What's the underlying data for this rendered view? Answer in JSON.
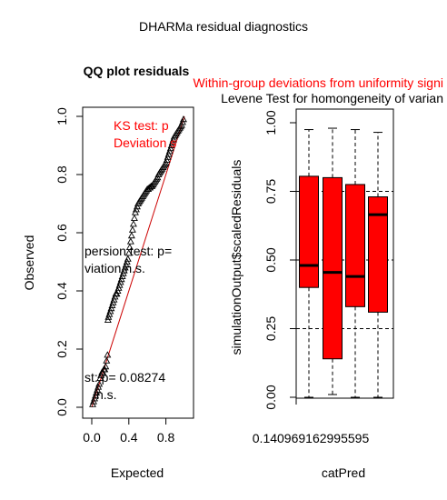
{
  "main_title": "DHARMa residual diagnostics",
  "colors": {
    "red": "#ff0000",
    "black": "#000000",
    "dark_red": "#cc0000"
  },
  "chart_data": [
    {
      "type": "scatter",
      "title": "QQ plot residuals",
      "xlabel": "Expected",
      "ylabel": "Observed",
      "xlim": [
        0,
        1
      ],
      "ylim": [
        0,
        1
      ],
      "x_ticks": [
        "0.0",
        "0.4",
        "0.8"
      ],
      "y_ticks": [
        "0.0",
        "0.2",
        "0.4",
        "0.6",
        "0.8",
        "1.0"
      ],
      "reference_line": "y = x",
      "point_symbol": "open triangle",
      "annotations": [
        {
          "text": "KS test: p",
          "color": "red"
        },
        {
          "text": "Deviation s",
          "color": "red"
        },
        {
          "text": "persion test: p=",
          "color": "black"
        },
        {
          "text": "viation n.s.",
          "color": "black"
        },
        {
          "text": "st: p= 0.08274",
          "color": "black"
        },
        {
          "text": "n.s.",
          "color": "black"
        }
      ],
      "points": [
        [
          0.01,
          0.01
        ],
        [
          0.02,
          0.02
        ],
        [
          0.03,
          0.03
        ],
        [
          0.04,
          0.04
        ],
        [
          0.05,
          0.05
        ],
        [
          0.06,
          0.06
        ],
        [
          0.07,
          0.07
        ],
        [
          0.08,
          0.08
        ],
        [
          0.09,
          0.1
        ],
        [
          0.1,
          0.11
        ],
        [
          0.11,
          0.12
        ],
        [
          0.12,
          0.12
        ],
        [
          0.13,
          0.13
        ],
        [
          0.14,
          0.13
        ],
        [
          0.15,
          0.14
        ],
        [
          0.16,
          0.16
        ],
        [
          0.17,
          0.18
        ],
        [
          0.175,
          0.3
        ],
        [
          0.18,
          0.31
        ],
        [
          0.19,
          0.32
        ],
        [
          0.2,
          0.33
        ],
        [
          0.21,
          0.34
        ],
        [
          0.22,
          0.35
        ],
        [
          0.23,
          0.36
        ],
        [
          0.24,
          0.37
        ],
        [
          0.25,
          0.38
        ],
        [
          0.26,
          0.39
        ],
        [
          0.27,
          0.39
        ],
        [
          0.28,
          0.4
        ],
        [
          0.29,
          0.41
        ],
        [
          0.3,
          0.42
        ],
        [
          0.31,
          0.43
        ],
        [
          0.32,
          0.44
        ],
        [
          0.33,
          0.45
        ],
        [
          0.34,
          0.46
        ],
        [
          0.35,
          0.47
        ],
        [
          0.36,
          0.48
        ],
        [
          0.37,
          0.49
        ],
        [
          0.38,
          0.5
        ],
        [
          0.39,
          0.51
        ],
        [
          0.4,
          0.53
        ],
        [
          0.41,
          0.55
        ],
        [
          0.42,
          0.57
        ],
        [
          0.43,
          0.59
        ],
        [
          0.44,
          0.61
        ],
        [
          0.45,
          0.63
        ],
        [
          0.46,
          0.65
        ],
        [
          0.47,
          0.67
        ],
        [
          0.48,
          0.68
        ],
        [
          0.49,
          0.69
        ],
        [
          0.5,
          0.7
        ],
        [
          0.51,
          0.705
        ],
        [
          0.52,
          0.71
        ],
        [
          0.53,
          0.715
        ],
        [
          0.54,
          0.72
        ],
        [
          0.55,
          0.725
        ],
        [
          0.56,
          0.73
        ],
        [
          0.57,
          0.735
        ],
        [
          0.58,
          0.74
        ],
        [
          0.59,
          0.745
        ],
        [
          0.6,
          0.75
        ],
        [
          0.61,
          0.75
        ],
        [
          0.62,
          0.755
        ],
        [
          0.63,
          0.755
        ],
        [
          0.64,
          0.76
        ],
        [
          0.65,
          0.76
        ],
        [
          0.66,
          0.765
        ],
        [
          0.67,
          0.77
        ],
        [
          0.68,
          0.775
        ],
        [
          0.69,
          0.78
        ],
        [
          0.7,
          0.785
        ],
        [
          0.71,
          0.79
        ],
        [
          0.72,
          0.8
        ],
        [
          0.73,
          0.805
        ],
        [
          0.74,
          0.81
        ],
        [
          0.75,
          0.815
        ],
        [
          0.76,
          0.82
        ],
        [
          0.77,
          0.825
        ],
        [
          0.78,
          0.83
        ],
        [
          0.79,
          0.835
        ],
        [
          0.8,
          0.84
        ],
        [
          0.81,
          0.85
        ],
        [
          0.82,
          0.86
        ],
        [
          0.83,
          0.87
        ],
        [
          0.84,
          0.88
        ],
        [
          0.85,
          0.89
        ],
        [
          0.86,
          0.9
        ],
        [
          0.87,
          0.91
        ],
        [
          0.88,
          0.92
        ],
        [
          0.89,
          0.93
        ],
        [
          0.9,
          0.935
        ],
        [
          0.91,
          0.94
        ],
        [
          0.92,
          0.945
        ],
        [
          0.93,
          0.95
        ],
        [
          0.94,
          0.955
        ],
        [
          0.95,
          0.96
        ],
        [
          0.96,
          0.965
        ],
        [
          0.97,
          0.97
        ],
        [
          0.98,
          0.98
        ],
        [
          0.99,
          0.99
        ]
      ]
    },
    {
      "type": "boxplot",
      "title": "Levene Test for homongeneity of varian",
      "subtitle": "Within-group deviations from uniformity signi",
      "xlabel": "catPred",
      "ylabel": "simulationOutput$scaledResiduals",
      "ylim": [
        0,
        1
      ],
      "y_ticks": [
        "0.00",
        "0.25",
        "0.50",
        "0.75",
        "1.00"
      ],
      "x_tick_label": "0.140969162995595",
      "reference_lines": [
        0.25,
        0.5,
        0.75
      ],
      "boxes": [
        {
          "min": 0.0,
          "q1": 0.4,
          "median": 0.48,
          "q3": 0.805,
          "max": 0.975
        },
        {
          "min": 0.01,
          "q1": 0.14,
          "median": 0.455,
          "q3": 0.8,
          "max": 0.98
        },
        {
          "min": 0.0,
          "q1": 0.33,
          "median": 0.44,
          "q3": 0.775,
          "max": 0.975
        },
        {
          "min": 0.0,
          "q1": 0.31,
          "median": 0.665,
          "q3": 0.73,
          "max": 0.965
        }
      ]
    }
  ]
}
